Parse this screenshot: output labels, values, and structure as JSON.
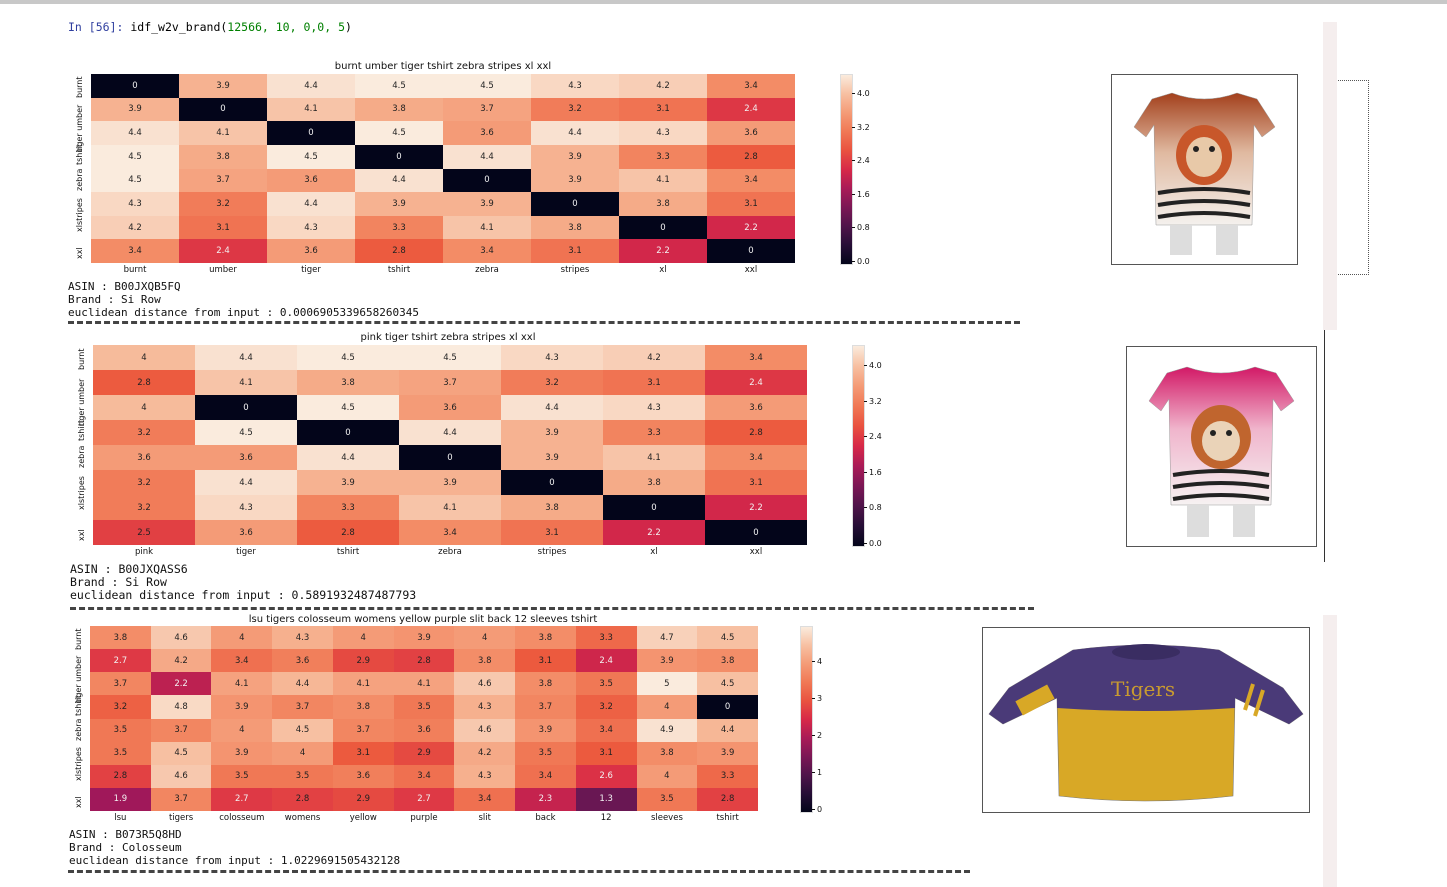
{
  "prompt": {
    "label": "In",
    "number": "[56]:",
    "code_fn": "idf_w2v_brand(",
    "code_args": "12566, 10, 0,0, 5",
    "code_close": ")"
  },
  "colors": {
    "low": "#03051a",
    "high": "#faebdd",
    "separator": "#444444"
  },
  "results": [
    {
      "chart_data": {
        "type": "heatmap",
        "title": "burnt umber tiger tshirt zebra stripes xl  xxl",
        "x_labels": [
          "burnt",
          "umber",
          "tiger",
          "tshirt",
          "zebra",
          "stripes",
          "xl",
          "xxl"
        ],
        "y_labels": [
          "burnt",
          "umber",
          "tiger",
          "tshirt",
          "zebra",
          "stripes",
          "xl",
          "xxl"
        ],
        "y_labels_visible": [
          "burnt",
          "tiger umber",
          "tshirt",
          "zebra",
          "xlstripes",
          "xxl"
        ],
        "values": [
          [
            0,
            3.9,
            4.4,
            4.5,
            4.5,
            4.3,
            4.2,
            3.4
          ],
          [
            3.9,
            0,
            4.1,
            3.8,
            3.7,
            3.2,
            3.1,
            2.4
          ],
          [
            4.4,
            4.1,
            0,
            4.5,
            3.6,
            4.4,
            4.3,
            3.6
          ],
          [
            4.5,
            3.8,
            4.5,
            0,
            4.4,
            3.9,
            3.3,
            2.8
          ],
          [
            4.5,
            3.7,
            3.6,
            4.4,
            0,
            3.9,
            4.1,
            3.4
          ],
          [
            4.3,
            3.2,
            4.4,
            3.9,
            3.9,
            0,
            3.8,
            3.1
          ],
          [
            4.2,
            3.1,
            4.3,
            3.3,
            4.1,
            3.8,
            0,
            2.2
          ],
          [
            3.4,
            2.4,
            3.6,
            2.8,
            3.4,
            3.1,
            2.2,
            0
          ]
        ],
        "vmin": 0,
        "vmax": 4.5,
        "colorbar_ticks": [
          "4.0",
          "3.2",
          "2.4",
          "1.6",
          "0.8",
          "0.0"
        ],
        "colorbar_values": [
          4.0,
          3.2,
          2.4,
          1.6,
          0.8,
          0.0
        ]
      },
      "asin": "ASIN : B00JXQB5FQ",
      "brand": "Brand : Si Row",
      "distance": "euclidean distance from input : 0.0006905339658260345",
      "image_icon": "tiger-tshirt-orange-image"
    },
    {
      "chart_data": {
        "type": "heatmap",
        "title": "pink tiger tshirt zebra stripes xl  xxl",
        "x_labels": [
          "pink",
          "tiger",
          "tshirt",
          "zebra",
          "stripes",
          "xl",
          "xxl"
        ],
        "y_labels": [
          "burnt",
          "umber",
          "tiger",
          "tshirt",
          "zebra",
          "stripes",
          "xl",
          "xxl"
        ],
        "y_labels_visible": [
          "burnt",
          "tiger umber",
          "tshirt",
          "zebra",
          "xlstripes",
          "xxl"
        ],
        "values": [
          [
            4,
            4.4,
            4.5,
            4.5,
            4.3,
            4.2,
            3.4
          ],
          [
            2.8,
            4.1,
            3.8,
            3.7,
            3.2,
            3.1,
            2.4
          ],
          [
            4,
            0,
            4.5,
            3.6,
            4.4,
            4.3,
            3.6
          ],
          [
            3.2,
            4.5,
            0,
            4.4,
            3.9,
            3.3,
            2.8
          ],
          [
            3.6,
            3.6,
            4.4,
            0,
            3.9,
            4.1,
            3.4
          ],
          [
            3.2,
            4.4,
            3.9,
            3.9,
            0,
            3.8,
            3.1
          ],
          [
            3.2,
            4.3,
            3.3,
            4.1,
            3.8,
            0,
            2.2
          ],
          [
            2.5,
            3.6,
            2.8,
            3.4,
            3.1,
            2.2,
            0
          ]
        ],
        "vmin": 0,
        "vmax": 4.5,
        "colorbar_ticks": [
          "4.0",
          "3.2",
          "2.4",
          "1.6",
          "0.8",
          "0.0"
        ],
        "colorbar_values": [
          4.0,
          3.2,
          2.4,
          1.6,
          0.8,
          0.0
        ]
      },
      "asin": "ASIN : B00JXQASS6",
      "brand": "Brand : Si Row",
      "distance": "euclidean distance from input : 0.5891932487487793",
      "image_icon": "tiger-tshirt-pink-image"
    },
    {
      "chart_data": {
        "type": "heatmap",
        "title": "lsu tigers colosseum womens yellow  purple slit back 12 sleeves tshirt",
        "x_labels": [
          "lsu",
          "tigers",
          "colosseum",
          "womens",
          "yellow",
          "purple",
          "slit",
          "back",
          "12",
          "sleeves",
          "tshirt"
        ],
        "y_labels": [
          "burnt",
          "umber",
          "tiger",
          "tshirt",
          "zebra",
          "stripes",
          "xl",
          "xxl"
        ],
        "y_labels_visible": [
          "burnt",
          "tiger umber",
          "tshirt",
          "zebra",
          "xlstripes",
          "xxl"
        ],
        "values": [
          [
            3.8,
            4.6,
            4,
            4.3,
            4,
            3.9,
            4,
            3.8,
            3.3,
            4.7,
            4.5
          ],
          [
            2.7,
            4.2,
            3.4,
            3.6,
            2.9,
            2.8,
            3.8,
            3.1,
            2.4,
            3.9,
            3.8
          ],
          [
            3.7,
            2.2,
            4.1,
            4.4,
            4.1,
            4.1,
            4.6,
            3.8,
            3.5,
            5,
            4.5
          ],
          [
            3.2,
            4.8,
            3.9,
            3.7,
            3.8,
            3.5,
            4.3,
            3.7,
            3.2,
            4,
            0
          ],
          [
            3.5,
            3.7,
            4,
            4.5,
            3.7,
            3.6,
            4.6,
            3.9,
            3.4,
            4.9,
            4.4
          ],
          [
            3.5,
            4.5,
            3.9,
            4,
            3.1,
            2.9,
            4.2,
            3.5,
            3.1,
            3.8,
            3.9
          ],
          [
            2.8,
            4.6,
            3.5,
            3.5,
            3.6,
            3.4,
            4.3,
            3.4,
            2.6,
            4,
            3.3
          ],
          [
            1.9,
            3.7,
            2.7,
            2.8,
            2.9,
            2.7,
            3.4,
            2.3,
            1.3,
            3.5,
            2.8
          ]
        ],
        "vmin": 0,
        "vmax": 5,
        "colorbar_ticks": [
          "4",
          "3",
          "2",
          "1",
          "0"
        ],
        "colorbar_values": [
          4,
          3,
          2,
          1,
          0
        ]
      },
      "asin": "ASIN : B073R5Q8HD",
      "brand": "Brand : Colosseum",
      "distance": "euclidean distance from input : 1.0229691505432128",
      "image_icon": "lsu-tigers-shirt-image"
    }
  ]
}
